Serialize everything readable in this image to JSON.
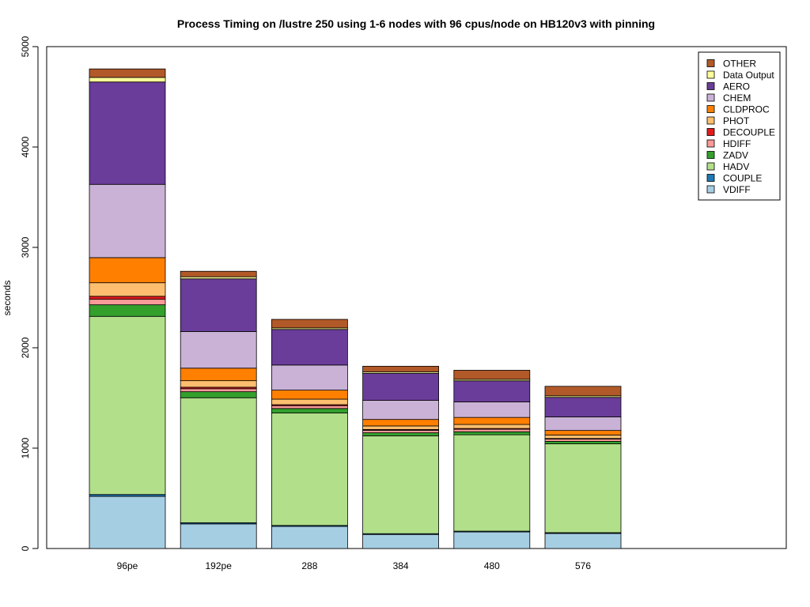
{
  "chart_data": {
    "type": "bar",
    "stacked": true,
    "title": "Process Timing on /lustre 250 using 1-6 nodes with 96 cpus/node on HB120v3 with pinning",
    "ylabel": "seconds",
    "xlabel": "",
    "ylim": [
      0,
      5000
    ],
    "yticks": [
      0,
      1000,
      2000,
      3000,
      4000,
      5000
    ],
    "categories": [
      "96pe",
      "192pe",
      "288",
      "384",
      "480",
      "576"
    ],
    "legend_position": "top-right",
    "series": [
      {
        "name": "VDIFF",
        "color": "#A6CEE3",
        "values": [
          520,
          245,
          220,
          140,
          165,
          150
        ]
      },
      {
        "name": "COUPLE",
        "color": "#1F78B4",
        "values": [
          18,
          12,
          10,
          8,
          8,
          8
        ]
      },
      {
        "name": "HADV",
        "color": "#B2DF8A",
        "values": [
          1775,
          1245,
          1120,
          975,
          960,
          885
        ]
      },
      {
        "name": "ZADV",
        "color": "#33A02C",
        "values": [
          115,
          60,
          45,
          30,
          30,
          25
        ]
      },
      {
        "name": "HDIFF",
        "color": "#FB9A99",
        "values": [
          55,
          30,
          28,
          25,
          25,
          22
        ]
      },
      {
        "name": "DECOUPLE",
        "color": "#E31A1C",
        "values": [
          30,
          15,
          10,
          8,
          8,
          6
        ]
      },
      {
        "name": "PHOT",
        "color": "#FDBF6F",
        "values": [
          135,
          65,
          55,
          35,
          40,
          35
        ]
      },
      {
        "name": "CLDPROC",
        "color": "#FF7F00",
        "values": [
          250,
          125,
          90,
          65,
          70,
          45
        ]
      },
      {
        "name": "CHEM",
        "color": "#CAB2D6",
        "values": [
          730,
          365,
          250,
          190,
          155,
          135
        ]
      },
      {
        "name": "AERO",
        "color": "#6A3D9A",
        "values": [
          1020,
          525,
          355,
          270,
          210,
          195
        ]
      },
      {
        "name": "Data Output",
        "color": "#FFFF99",
        "values": [
          45,
          20,
          15,
          15,
          15,
          15
        ]
      },
      {
        "name": "OTHER",
        "color": "#B15928",
        "values": [
          85,
          55,
          85,
          55,
          90,
          95
        ]
      }
    ]
  }
}
